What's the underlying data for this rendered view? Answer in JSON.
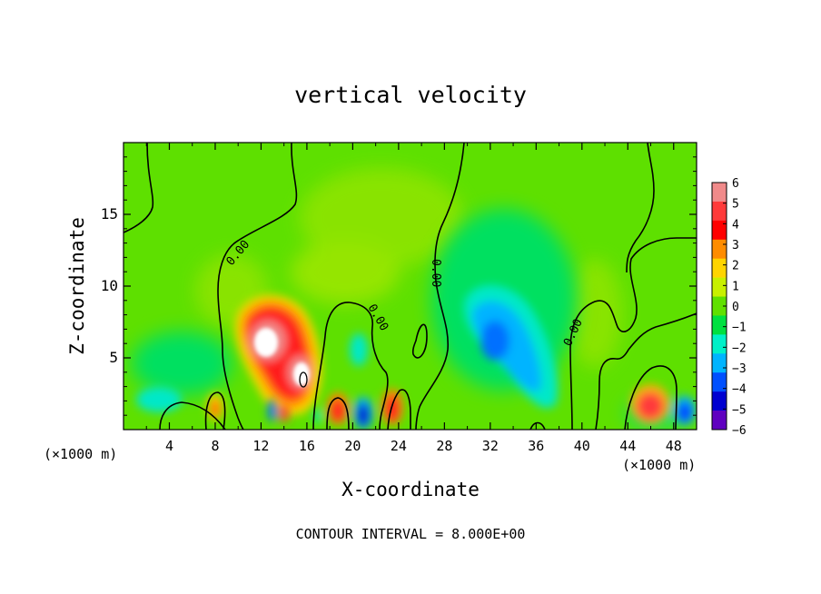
{
  "chart_data": {
    "type": "heatmap",
    "title": "vertical velocity",
    "xlabel": "X-coordinate",
    "ylabel": "Z-coordinate",
    "x_unit": "(×1000 m)",
    "x_unit_right": "(×1000 m)",
    "xlim": [
      0,
      50
    ],
    "ylim": [
      0,
      20
    ],
    "x_ticks": [
      4,
      8,
      12,
      16,
      20,
      24,
      28,
      32,
      36,
      40,
      44,
      48
    ],
    "y_ticks": [
      5,
      10,
      15
    ],
    "contour_label": "0.00",
    "footer": "CONTOUR INTERVAL = 8.000E+00",
    "colorbar": {
      "levels": [
        6,
        5,
        4,
        3,
        2,
        1,
        0,
        -1,
        -2,
        -3,
        -4,
        -5,
        -6
      ],
      "labels": [
        "6",
        "5",
        "4",
        "3",
        "2",
        "1",
        "0",
        "−1",
        "−2",
        "−3",
        "−4",
        "−5",
        "−6"
      ],
      "colors": [
        "#f08a8a",
        "#ff3a3a",
        "#ff0000",
        "#ff8c00",
        "#ffd400",
        "#c8f000",
        "#60e000",
        "#00e040",
        "#00f0c8",
        "#00b4ff",
        "#0050ff",
        "#0000d0",
        "#6000c0"
      ]
    },
    "features": [
      {
        "kind": "updraft",
        "x": 13.0,
        "z": 6.0,
        "value": 8
      },
      {
        "kind": "updraft",
        "x": 15.5,
        "z": 3.5,
        "value": 8
      },
      {
        "kind": "updraft",
        "x": 18.8,
        "z": 1.5,
        "value": 4
      },
      {
        "kind": "updraft",
        "x": 23.5,
        "z": 1.5,
        "value": 5
      },
      {
        "kind": "updraft",
        "x": 45.8,
        "z": 1.8,
        "value": 4
      },
      {
        "kind": "updraft",
        "x": 8.2,
        "z": 1.5,
        "value": 3
      },
      {
        "kind": "downdraft",
        "x": 33.0,
        "z": 5.5,
        "value": -3
      },
      {
        "kind": "downdraft",
        "x": 21.0,
        "z": 1.2,
        "value": -4
      },
      {
        "kind": "downdraft",
        "x": 48.8,
        "z": 1.5,
        "value": -3
      },
      {
        "kind": "downdraft",
        "x": 13.0,
        "z": 1.2,
        "value": -3
      }
    ]
  }
}
